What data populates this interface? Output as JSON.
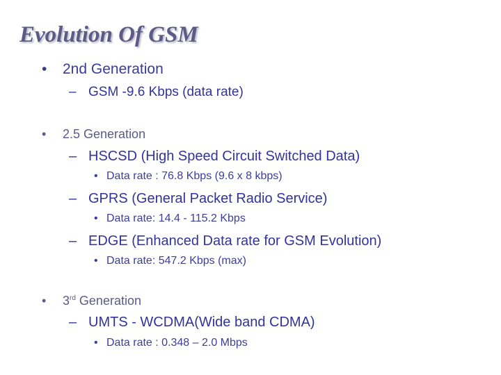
{
  "slide": {
    "title": "Evolution Of GSM",
    "bullets": {
      "dot": "•",
      "dash": "–"
    },
    "gen2": {
      "label": "2nd Generation",
      "gsm": "GSM -9.6 Kbps (data rate)"
    },
    "gen25": {
      "label": "2.5 Generation",
      "hscsd": "HSCSD (High Speed Circuit Switched  Data)",
      "hscsd_rate": "Data rate : 76.8 Kbps (9.6 x 8 kbps)",
      "gprs": "GPRS (General Packet Radio Service)",
      "gprs_rate": "Data rate: 14.4 - 115.2 Kbps",
      "edge": "EDGE (Enhanced Data rate for GSM Evolution)",
      "edge_rate": "Data rate: 547.2 Kbps (max)"
    },
    "gen3": {
      "label_num": "3",
      "label_sup": "rd",
      "label_rest": " Generation",
      "umts": "UMTS - WCDMA(Wide band CDMA)",
      "umts_rate": "Data rate : 0.348 – 2.0 Mbps"
    }
  }
}
